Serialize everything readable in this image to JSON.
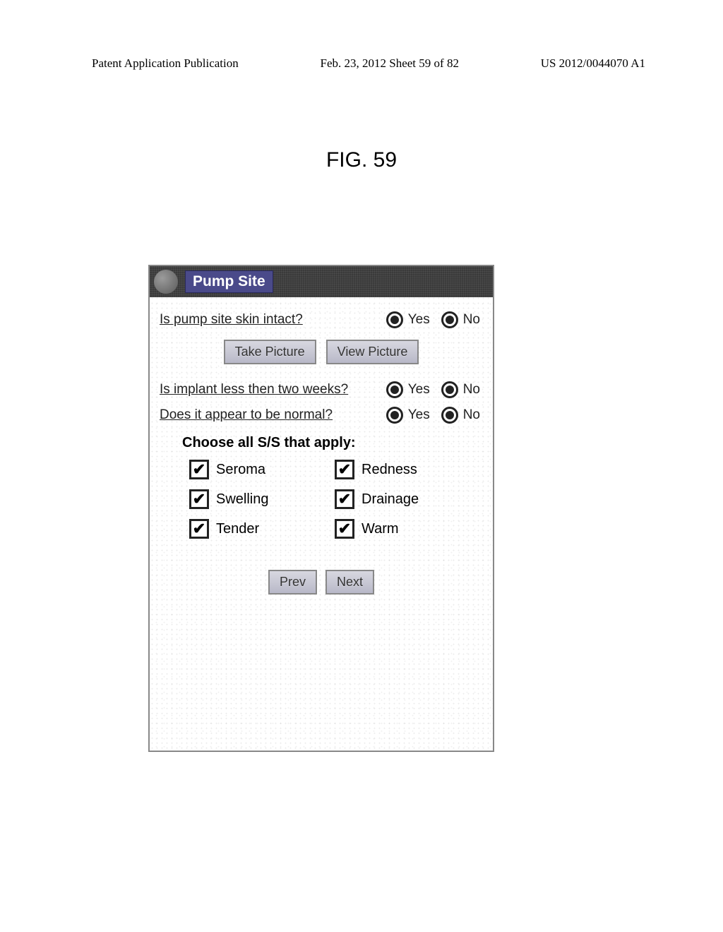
{
  "header": {
    "left": "Patent Application Publication",
    "center": "Feb. 23, 2012  Sheet 59 of 82",
    "right": "US 2012/0044070 A1"
  },
  "figure_label": "FIG. 59",
  "title": "Pump Site",
  "questions": {
    "q1": {
      "text": "Is pump site skin intact?",
      "yes": "Yes",
      "no": "No"
    },
    "q2": {
      "text": "Is implant less then two weeks?",
      "yes": "Yes",
      "no": "No"
    },
    "q3": {
      "text": "Does it appear to be normal?",
      "yes": "Yes",
      "no": "No"
    }
  },
  "buttons": {
    "take_picture": "Take Picture",
    "view_picture": "View Picture",
    "prev": "Prev",
    "next": "Next"
  },
  "section_label": "Choose all S/S that apply:",
  "symptoms": {
    "seroma": "Seroma",
    "redness": "Redness",
    "swelling": "Swelling",
    "drainage": "Drainage",
    "tender": "Tender",
    "warm": "Warm"
  },
  "colors": {
    "titlebar_bg": "#3a3a3a",
    "titlebox_bg": "#4a4a8a",
    "btn_border": "#888888",
    "text": "#222222"
  }
}
